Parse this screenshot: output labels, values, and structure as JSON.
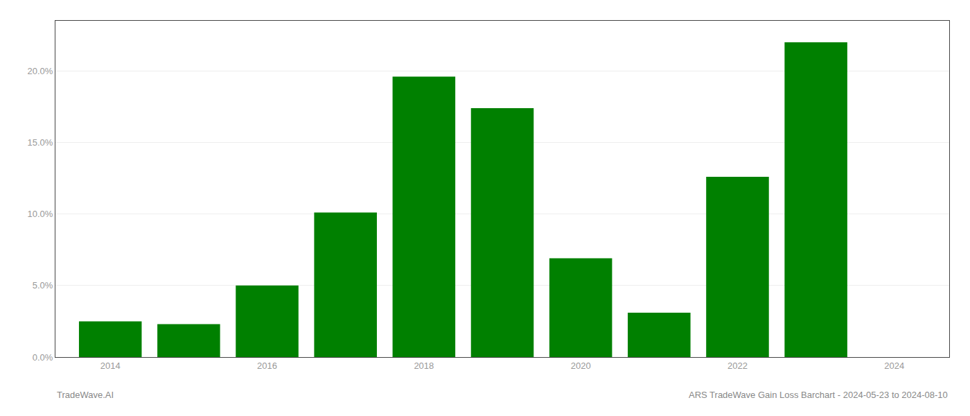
{
  "chart_data": {
    "type": "bar",
    "x": [
      2014,
      2015,
      2016,
      2017,
      2018,
      2019,
      2020,
      2021,
      2022,
      2023
    ],
    "values": [
      0.025,
      0.023,
      0.05,
      0.101,
      0.196,
      0.174,
      0.069,
      0.031,
      0.126,
      0.22
    ],
    "color": "#008000",
    "xlim": [
      2013.3,
      2024.7
    ],
    "xticks": [
      2014,
      2016,
      2018,
      2020,
      2022,
      2024
    ],
    "ylim": [
      0,
      0.235
    ],
    "yticks": [
      {
        "value": 0.0,
        "label": "0.0%"
      },
      {
        "value": 0.05,
        "label": "5.0%"
      },
      {
        "value": 0.1,
        "label": "10.0%"
      },
      {
        "value": 0.15,
        "label": "15.0%"
      },
      {
        "value": 0.2,
        "label": "20.0%"
      }
    ],
    "grid": true,
    "annotations": [
      "TradeWave.AI",
      "ARS TradeWave Gain Loss Barchart - 2024-05-23 to 2024-08-10"
    ]
  }
}
